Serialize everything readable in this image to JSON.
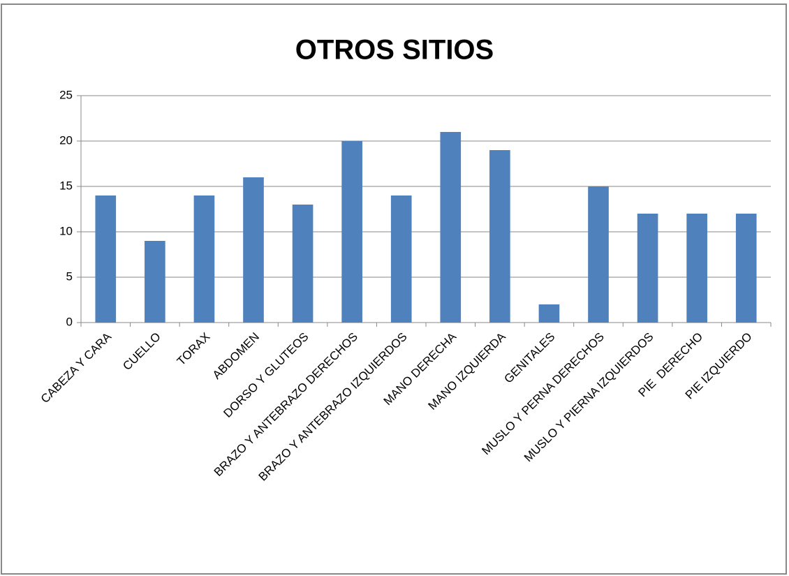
{
  "chart_data": {
    "type": "bar",
    "title": "OTROS SITIOS",
    "categories": [
      "CABEZA Y CARA",
      "CUELLO",
      "TORAX",
      "ABDOMEN",
      "DORSO Y GLUTEOS",
      "BRAZO Y ANTEBRAZO DERECHOS",
      "BRAZO Y ANTEBRAZO IZQUIERDOS",
      "MANO DERECHA",
      "MANO IZQUIERDA",
      "GENITALES",
      "MUSLO Y PERNA DERECHOS",
      "MUSLO Y PIERNA IZQUIERDOS",
      "PIE  DERECHO",
      "PIE IZQUIERDO"
    ],
    "values": [
      14,
      9,
      14,
      16,
      13,
      20,
      14,
      21,
      19,
      2,
      15,
      12,
      12,
      12
    ],
    "color": "#4f81bd",
    "ylim": [
      0,
      25
    ],
    "yticks": [
      0,
      5,
      10,
      15,
      20,
      25
    ],
    "grid": true
  }
}
